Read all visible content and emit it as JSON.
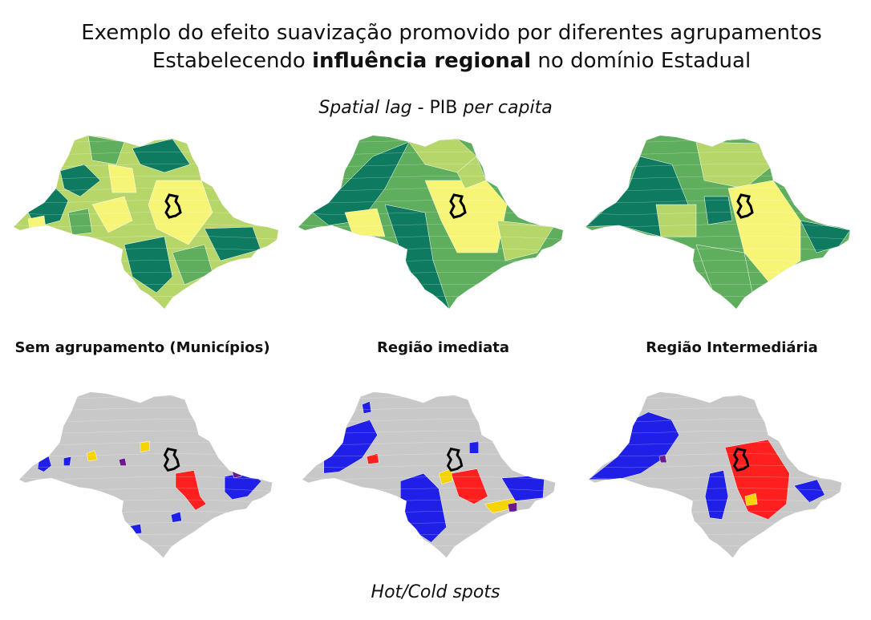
{
  "title_line1": "Exemplo do efeito suavização promovido por diferentes agrupamentos",
  "title_line2_pre": "Estabelecendo ",
  "title_line2_bold": "influência regional",
  "title_line2_post": " no domínio Estadual",
  "subtitle_italic1": "Spatial lag",
  "subtitle_plain": " - PIB ",
  "subtitle_italic2": "per capita",
  "map_labels": [
    "Sem agrupamento (Municípios)",
    "Região imediata",
    "Região Intermediária"
  ],
  "footer": "Hot/Cold spots",
  "colors": {
    "dark_green": "#0e7a5f",
    "mid_green": "#5fae5e",
    "light_green": "#b7d66a",
    "yellow": "#f6f576",
    "gray": "#c8c8c8",
    "hot": "#ff1f1f",
    "cold": "#1f1fe8",
    "warm_outlier": "#f5d400",
    "purple": "#6a1a8a",
    "outline": "#000000"
  }
}
